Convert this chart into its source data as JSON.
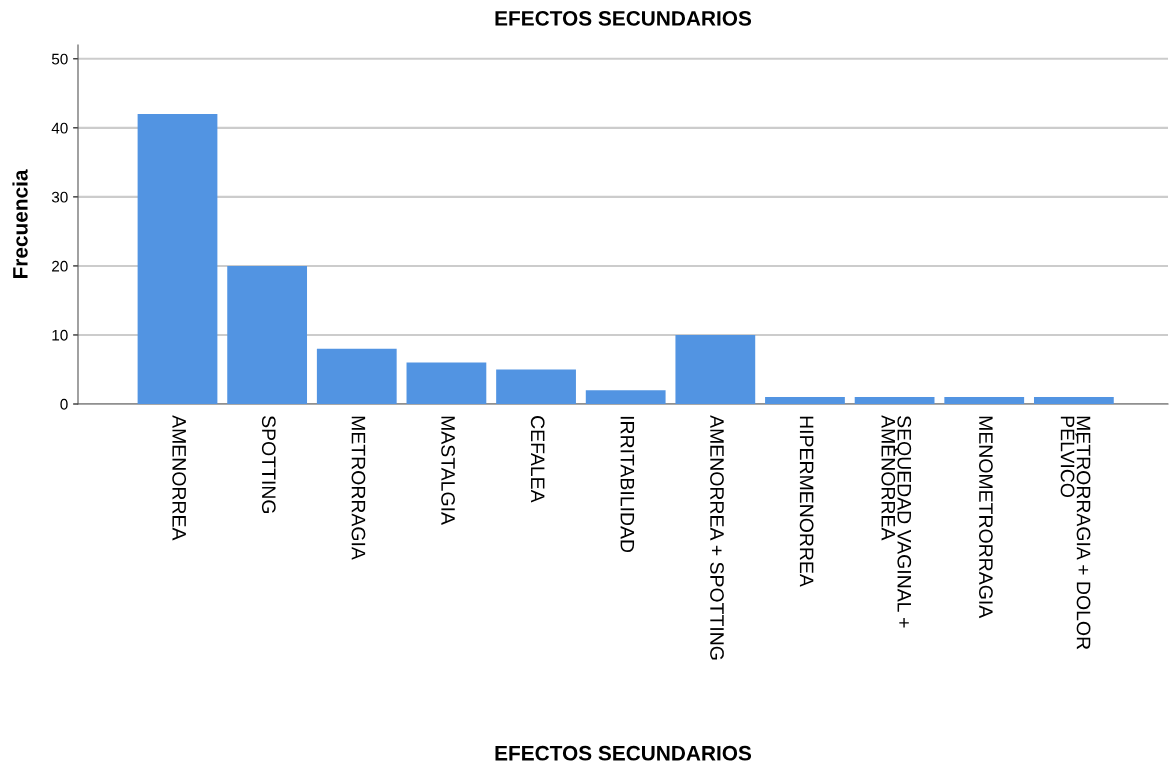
{
  "chart_data": {
    "type": "bar",
    "title": "EFECTOS SECUNDARIOS",
    "xlabel": "EFECTOS SECUNDARIOS",
    "ylabel": "Frecuencia",
    "categories": [
      "AMENORREA",
      "SPOTTING",
      "METRORRAGIA",
      "MASTALGIA",
      "CEFALEA",
      "IRRITABILIDAD",
      "AMENORREA + SPOTTING",
      "HIPERMENORREA",
      "SEQUEDAD VAGINAL +\nAMENORREA",
      "MENOMETRORRAGIA",
      "METRORRAGIA + DOLOR\nPÉLVICO"
    ],
    "values": [
      42,
      20,
      8,
      6,
      5,
      2,
      10,
      1,
      1,
      1,
      1
    ],
    "color": "#5294e2",
    "ylim": [
      0,
      52
    ],
    "yticks": [
      0,
      10,
      20,
      30,
      40,
      50
    ],
    "grid": "y"
  }
}
